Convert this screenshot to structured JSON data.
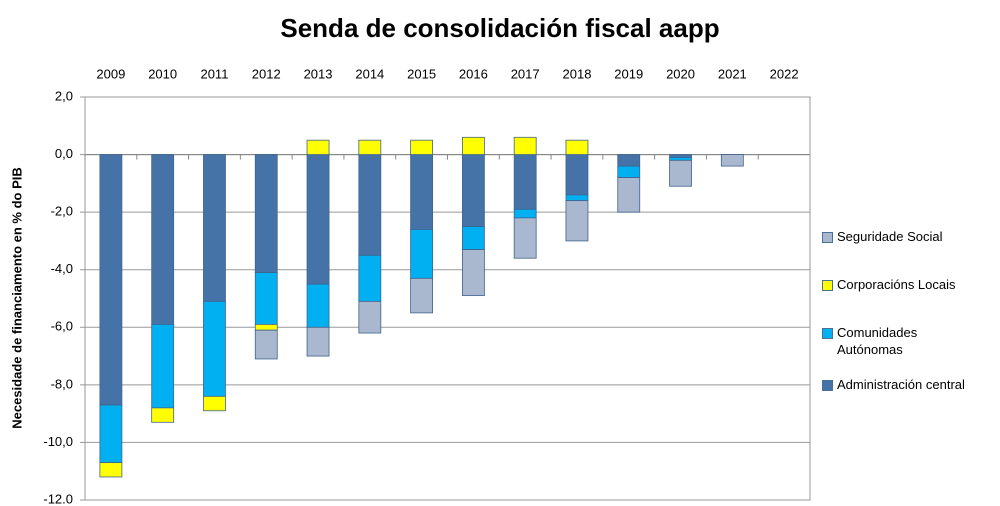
{
  "chart_data": {
    "type": "bar",
    "stacked": true,
    "title": "Senda de consolidación fiscal aapp",
    "y_label": "Necesidade de financiamento en % do PIB",
    "categories": [
      "2009",
      "2010",
      "2011",
      "2012",
      "2013",
      "2014",
      "2015",
      "2016",
      "2017",
      "2018",
      "2019",
      "2020",
      "2021",
      "2022"
    ],
    "series": [
      {
        "name": "Administración central",
        "color": "#4573a7",
        "values": [
          -8.7,
          -5.9,
          -5.1,
          -4.1,
          -4.5,
          -3.5,
          -2.6,
          -2.5,
          -1.9,
          -1.4,
          -0.4,
          -0.1,
          0,
          0
        ]
      },
      {
        "name": "Comunidades Autónomas",
        "color": "#00b0f0",
        "values": [
          -2.0,
          -2.9,
          -3.3,
          -1.8,
          -1.5,
          -1.6,
          -1.7,
          -0.8,
          -0.3,
          -0.2,
          -0.4,
          -0.1,
          0,
          0
        ]
      },
      {
        "name": "Corporacións Locais",
        "color": "#ffff00",
        "values": [
          -0.5,
          -0.5,
          -0.5,
          -0.2,
          0.5,
          0.5,
          0.5,
          0.6,
          0.6,
          0.5,
          0,
          0,
          0,
          0
        ]
      },
      {
        "name": "Seguridade Social",
        "color": "#a9b8ce",
        "values": [
          0,
          0,
          0,
          -1.0,
          -1.0,
          -1.1,
          -1.2,
          -1.6,
          -1.4,
          -1.4,
          -1.2,
          -0.9,
          -0.4,
          0
        ]
      }
    ],
    "ylim": [
      -12,
      2
    ],
    "yticks": [
      {
        "value": 2,
        "label": "2,0"
      },
      {
        "value": 0,
        "label": "0,0"
      },
      {
        "value": -2,
        "label": "-2,0"
      },
      {
        "value": -4,
        "label": "-4,0"
      },
      {
        "value": -6,
        "label": "-6,0"
      },
      {
        "value": -8,
        "label": "-8,0"
      },
      {
        "value": -10,
        "label": "-10,0"
      },
      {
        "value": -12,
        "label": "-12.0"
      }
    ],
    "grid": true
  }
}
